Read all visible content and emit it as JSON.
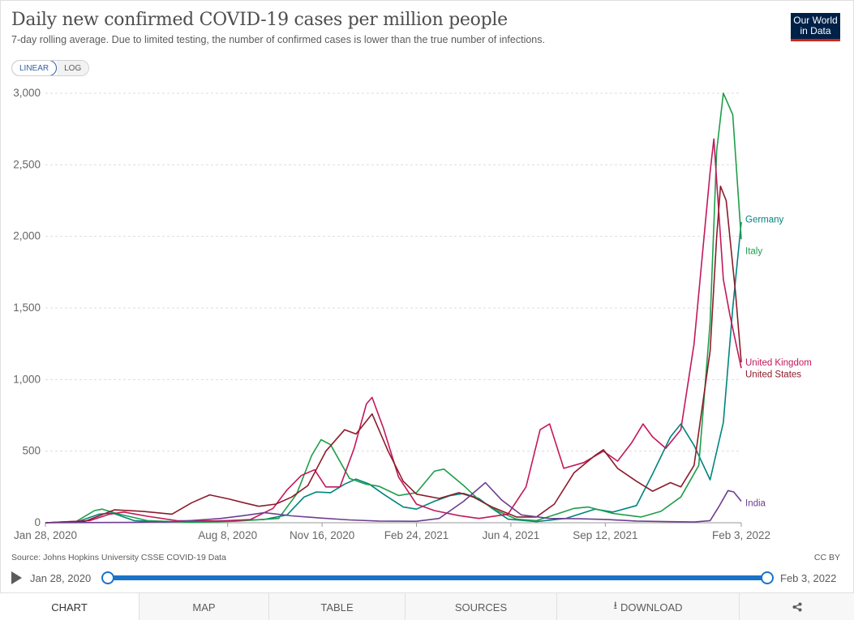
{
  "header": {
    "title": "Daily new confirmed COVID-19 cases per million people",
    "subtitle": "7-day rolling average. Due to limited testing, the number of confirmed cases is lower than the true number of infections.",
    "logo_line1": "Our World",
    "logo_line2": "in Data"
  },
  "scale_toggle": {
    "linear": "LINEAR",
    "log": "LOG",
    "selected": "linear"
  },
  "footer": {
    "source": "Source: Johns Hopkins University CSSE COVID-19 Data",
    "license": "CC BY"
  },
  "timeline": {
    "start": "Jan 28, 2020",
    "end": "Feb 3, 2022",
    "start_fraction": 0,
    "end_fraction": 1
  },
  "tabs": [
    "CHART",
    "MAP",
    "TABLE",
    "SOURCES",
    "DOWNLOAD",
    "share-icon"
  ],
  "active_tab": "CHART",
  "chart_data": {
    "type": "line",
    "title": "Daily new confirmed COVID-19 cases per million people",
    "xlabel": "",
    "ylabel": "",
    "x_ticks": [
      "Jan 28, 2020",
      "Aug 8, 2020",
      "Nov 16, 2020",
      "Feb 24, 2021",
      "Jun 4, 2021",
      "Sep 12, 2021",
      "Feb 3, 2022"
    ],
    "y_ticks": [
      "0",
      "500",
      "1,000",
      "1,500",
      "2,000",
      "2,500",
      "3,000"
    ],
    "xlim": [
      "2020-01-28",
      "2022-02-03"
    ],
    "ylim": [
      0,
      3000
    ],
    "grid": "horizontal dashed",
    "legend": "inline labels at right end of lines",
    "series": [
      {
        "name": "Germany",
        "color": "#00847e",
        "points": [
          [
            "2020-01-28",
            0
          ],
          [
            "2020-03-01",
            5
          ],
          [
            "2020-03-25",
            60
          ],
          [
            "2020-04-08",
            68
          ],
          [
            "2020-05-01",
            15
          ],
          [
            "2020-06-01",
            5
          ],
          [
            "2020-08-01",
            14
          ],
          [
            "2020-09-15",
            22
          ],
          [
            "2020-10-10",
            55
          ],
          [
            "2020-10-28",
            180
          ],
          [
            "2020-11-10",
            215
          ],
          [
            "2020-11-25",
            210
          ],
          [
            "2020-12-10",
            270
          ],
          [
            "2020-12-22",
            305
          ],
          [
            "2021-01-05",
            270
          ],
          [
            "2021-01-20",
            200
          ],
          [
            "2021-02-10",
            110
          ],
          [
            "2021-02-24",
            95
          ],
          [
            "2021-03-15",
            150
          ],
          [
            "2021-04-01",
            190
          ],
          [
            "2021-04-15",
            205
          ],
          [
            "2021-05-01",
            170
          ],
          [
            "2021-05-15",
            100
          ],
          [
            "2021-06-01",
            25
          ],
          [
            "2021-07-01",
            8
          ],
          [
            "2021-08-01",
            30
          ],
          [
            "2021-09-01",
            95
          ],
          [
            "2021-09-20",
            75
          ],
          [
            "2021-10-15",
            120
          ],
          [
            "2021-11-01",
            340
          ],
          [
            "2021-11-20",
            600
          ],
          [
            "2021-12-01",
            690
          ],
          [
            "2021-12-15",
            540
          ],
          [
            "2022-01-01",
            300
          ],
          [
            "2022-01-15",
            700
          ],
          [
            "2022-01-25",
            1500
          ],
          [
            "2022-02-03",
            2100
          ]
        ]
      },
      {
        "name": "Italy",
        "color": "#1e9e4a",
        "points": [
          [
            "2020-01-28",
            0
          ],
          [
            "2020-03-01",
            10
          ],
          [
            "2020-03-20",
            85
          ],
          [
            "2020-03-28",
            95
          ],
          [
            "2020-04-15",
            60
          ],
          [
            "2020-05-15",
            15
          ],
          [
            "2020-07-01",
            3
          ],
          [
            "2020-08-15",
            10
          ],
          [
            "2020-10-01",
            30
          ],
          [
            "2020-10-20",
            200
          ],
          [
            "2020-11-05",
            470
          ],
          [
            "2020-11-15",
            580
          ],
          [
            "2020-11-25",
            545
          ],
          [
            "2020-12-15",
            310
          ],
          [
            "2021-01-01",
            270
          ],
          [
            "2021-01-15",
            255
          ],
          [
            "2021-02-05",
            190
          ],
          [
            "2021-02-24",
            210
          ],
          [
            "2021-03-15",
            360
          ],
          [
            "2021-03-25",
            375
          ],
          [
            "2021-04-15",
            260
          ],
          [
            "2021-05-01",
            160
          ],
          [
            "2021-05-20",
            85
          ],
          [
            "2021-06-10",
            25
          ],
          [
            "2021-07-01",
            15
          ],
          [
            "2021-07-20",
            55
          ],
          [
            "2021-08-10",
            100
          ],
          [
            "2021-08-25",
            110
          ],
          [
            "2021-09-20",
            65
          ],
          [
            "2021-10-20",
            40
          ],
          [
            "2021-11-10",
            80
          ],
          [
            "2021-12-01",
            180
          ],
          [
            "2021-12-20",
            400
          ],
          [
            "2022-01-01",
            1400
          ],
          [
            "2022-01-08",
            2600
          ],
          [
            "2022-01-15",
            3000
          ],
          [
            "2022-01-25",
            2850
          ],
          [
            "2022-02-03",
            1980
          ]
        ]
      },
      {
        "name": "United Kingdom",
        "color": "#c2185b",
        "points": [
          [
            "2020-01-28",
            0
          ],
          [
            "2020-03-15",
            15
          ],
          [
            "2020-04-05",
            60
          ],
          [
            "2020-04-20",
            75
          ],
          [
            "2020-05-15",
            45
          ],
          [
            "2020-06-15",
            15
          ],
          [
            "2020-08-01",
            12
          ],
          [
            "2020-09-01",
            22
          ],
          [
            "2020-09-25",
            100
          ],
          [
            "2020-10-10",
            230
          ],
          [
            "2020-10-25",
            330
          ],
          [
            "2020-11-08",
            370
          ],
          [
            "2020-11-20",
            250
          ],
          [
            "2020-12-05",
            250
          ],
          [
            "2020-12-20",
            520
          ],
          [
            "2021-01-02",
            830
          ],
          [
            "2021-01-08",
            875
          ],
          [
            "2021-01-20",
            660
          ],
          [
            "2021-02-05",
            320
          ],
          [
            "2021-02-24",
            130
          ],
          [
            "2021-03-15",
            85
          ],
          [
            "2021-04-10",
            50
          ],
          [
            "2021-05-01",
            30
          ],
          [
            "2021-06-01",
            60
          ],
          [
            "2021-06-20",
            250
          ],
          [
            "2021-07-05",
            650
          ],
          [
            "2021-07-15",
            690
          ],
          [
            "2021-07-30",
            380
          ],
          [
            "2021-08-20",
            420
          ],
          [
            "2021-09-10",
            500
          ],
          [
            "2021-09-25",
            430
          ],
          [
            "2021-10-10",
            560
          ],
          [
            "2021-10-22",
            690
          ],
          [
            "2021-11-01",
            600
          ],
          [
            "2021-11-15",
            520
          ],
          [
            "2021-12-01",
            650
          ],
          [
            "2021-12-15",
            1250
          ],
          [
            "2022-01-01",
            2450
          ],
          [
            "2022-01-05",
            2680
          ],
          [
            "2022-01-15",
            1700
          ],
          [
            "2022-01-22",
            1450
          ],
          [
            "2022-02-03",
            1080
          ]
        ]
      },
      {
        "name": "United States",
        "color": "#8c1b2a",
        "points": [
          [
            "2020-01-28",
            0
          ],
          [
            "2020-03-10",
            10
          ],
          [
            "2020-04-10",
            90
          ],
          [
            "2020-05-10",
            80
          ],
          [
            "2020-06-10",
            60
          ],
          [
            "2020-07-01",
            140
          ],
          [
            "2020-07-20",
            195
          ],
          [
            "2020-08-10",
            165
          ],
          [
            "2020-08-25",
            140
          ],
          [
            "2020-09-10",
            115
          ],
          [
            "2020-09-28",
            130
          ],
          [
            "2020-10-15",
            180
          ],
          [
            "2020-11-01",
            260
          ],
          [
            "2020-11-20",
            500
          ],
          [
            "2020-12-10",
            650
          ],
          [
            "2020-12-22",
            620
          ],
          [
            "2021-01-08",
            760
          ],
          [
            "2021-01-25",
            500
          ],
          [
            "2021-02-10",
            290
          ],
          [
            "2021-02-24",
            200
          ],
          [
            "2021-03-20",
            170
          ],
          [
            "2021-04-10",
            210
          ],
          [
            "2021-04-25",
            180
          ],
          [
            "2021-05-15",
            110
          ],
          [
            "2021-06-10",
            40
          ],
          [
            "2021-07-01",
            40
          ],
          [
            "2021-07-20",
            130
          ],
          [
            "2021-08-10",
            350
          ],
          [
            "2021-09-01",
            470
          ],
          [
            "2021-09-10",
            510
          ],
          [
            "2021-09-25",
            380
          ],
          [
            "2021-10-15",
            290
          ],
          [
            "2021-11-01",
            220
          ],
          [
            "2021-11-20",
            280
          ],
          [
            "2021-12-01",
            250
          ],
          [
            "2021-12-15",
            400
          ],
          [
            "2022-01-01",
            1200
          ],
          [
            "2022-01-08",
            2000
          ],
          [
            "2022-01-12",
            2350
          ],
          [
            "2022-01-18",
            2250
          ],
          [
            "2022-01-28",
            1600
          ],
          [
            "2022-02-03",
            1120
          ]
        ]
      },
      {
        "name": "India",
        "color": "#6d3e91",
        "points": [
          [
            "2020-01-28",
            0
          ],
          [
            "2020-05-01",
            3
          ],
          [
            "2020-06-15",
            8
          ],
          [
            "2020-08-01",
            30
          ],
          [
            "2020-08-25",
            50
          ],
          [
            "2020-09-16",
            70
          ],
          [
            "2020-10-15",
            48
          ],
          [
            "2020-11-16",
            32
          ],
          [
            "2020-12-15",
            20
          ],
          [
            "2021-01-15",
            12
          ],
          [
            "2021-02-24",
            10
          ],
          [
            "2021-03-20",
            30
          ],
          [
            "2021-04-15",
            150
          ],
          [
            "2021-05-08",
            280
          ],
          [
            "2021-05-25",
            160
          ],
          [
            "2021-06-15",
            55
          ],
          [
            "2021-07-15",
            30
          ],
          [
            "2021-08-15",
            28
          ],
          [
            "2021-09-15",
            22
          ],
          [
            "2021-10-15",
            12
          ],
          [
            "2021-11-15",
            8
          ],
          [
            "2021-12-15",
            5
          ],
          [
            "2022-01-01",
            15
          ],
          [
            "2022-01-10",
            110
          ],
          [
            "2022-01-20",
            225
          ],
          [
            "2022-01-26",
            215
          ],
          [
            "2022-02-03",
            150
          ]
        ]
      }
    ],
    "labels": [
      {
        "text": "Germany",
        "series": "Germany",
        "value": 2120
      },
      {
        "text": "Italy",
        "series": "Italy",
        "value": 1900
      },
      {
        "text": "United Kingdom",
        "series": "United Kingdom",
        "value": 1120
      },
      {
        "text": "United States",
        "series": "United States",
        "value": 1040
      },
      {
        "text": "India",
        "series": "India",
        "value": 140
      }
    ]
  }
}
